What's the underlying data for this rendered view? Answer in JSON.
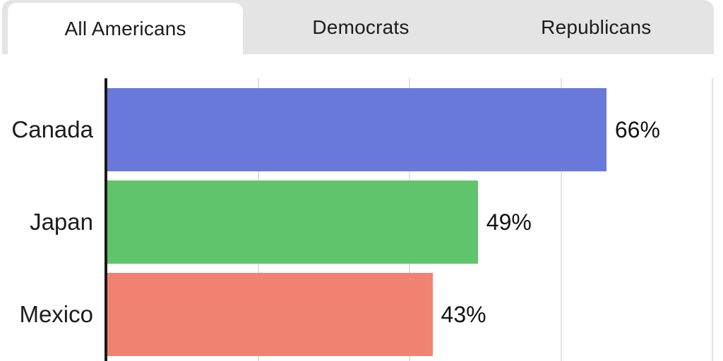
{
  "tabs": [
    {
      "label": "All Americans",
      "active": true
    },
    {
      "label": "Democrats",
      "active": false
    },
    {
      "label": "Republicans",
      "active": false
    }
  ],
  "chart_data": {
    "type": "bar",
    "orientation": "horizontal",
    "categories": [
      "Canada",
      "Japan",
      "Mexico"
    ],
    "values": [
      66,
      49,
      43
    ],
    "value_labels": [
      "66%",
      "49%",
      "43%"
    ],
    "unit": "%",
    "xlim": [
      0,
      81
    ],
    "gridlines_pct": [
      20,
      40,
      60,
      80
    ],
    "grid": true,
    "legend": false,
    "bar_colors": [
      "#6979db",
      "#60c46d",
      "#f18272"
    ]
  },
  "colors": {
    "tab_bar_bg": "#e4e4e4",
    "active_tab_bg": "#ffffff",
    "text": "#1c1c1c",
    "axis": "#1a1a1a",
    "gridline": "#e2e2e2"
  }
}
